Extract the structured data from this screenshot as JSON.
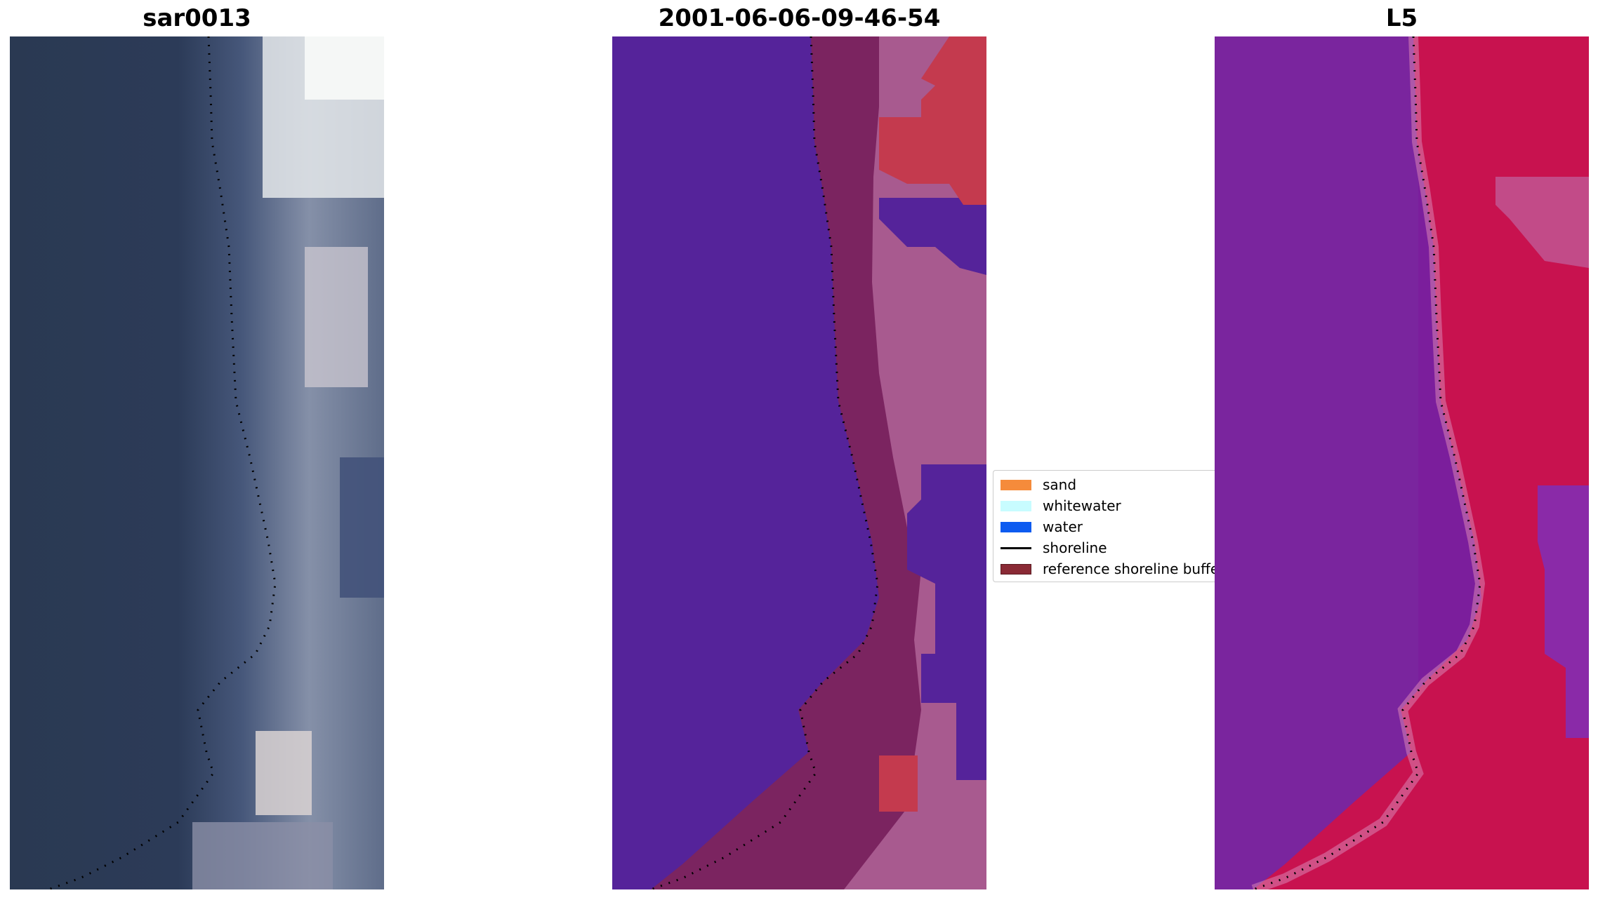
{
  "panels": [
    {
      "title": "sar0013"
    },
    {
      "title": "2001-06-06-09-46-54"
    },
    {
      "title": "L5"
    }
  ],
  "legend": {
    "items": [
      {
        "label": "sand",
        "color": "#f58b3b",
        "kind": "patch"
      },
      {
        "label": "whitewater",
        "color": "#c8fcff",
        "kind": "patch"
      },
      {
        "label": "water",
        "color": "#0d5bf0",
        "kind": "patch"
      },
      {
        "label": "shoreline",
        "color": "#000000",
        "kind": "line"
      },
      {
        "label": "reference shoreline buffer",
        "color": "#8a2a35",
        "kind": "patch"
      }
    ]
  },
  "colors": {
    "rgb_water": "#2b3a56",
    "rgb_land": "#8a93a8",
    "rgb_bright": "#eef2f2",
    "class_water": "#55239a",
    "class_buffer": "#7b2460",
    "class_land": "#a85a8f",
    "class_sand": "#c43a4e",
    "l5_veg": "#7b1e9c",
    "l5_bright": "#c8124f"
  }
}
